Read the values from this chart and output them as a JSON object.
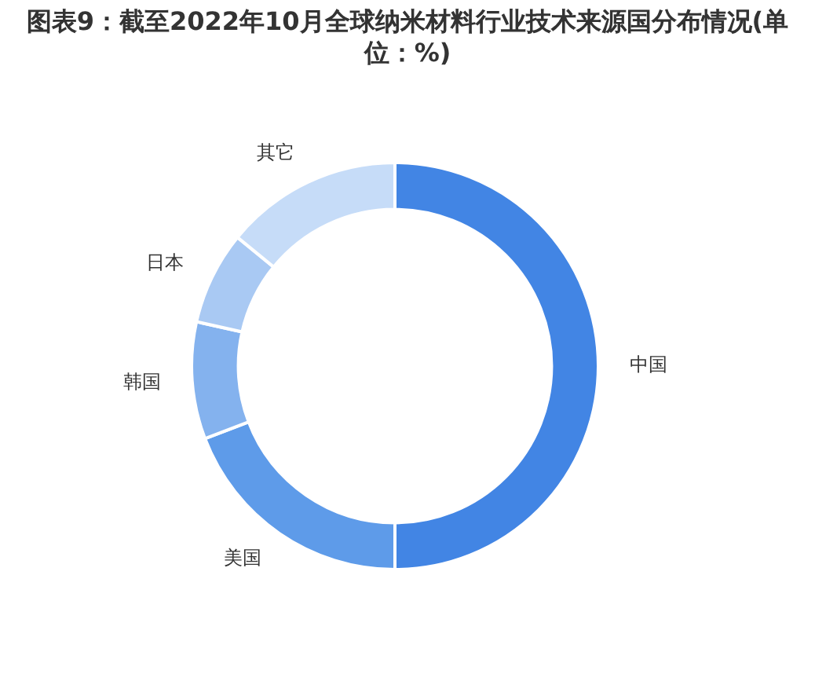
{
  "chart_data": {
    "type": "donut",
    "title": "图表9：截至2022年10月全球纳米材料行业技术来源国分布情况(单位：%)",
    "categories": [
      "中国",
      "美国",
      "韩国",
      "日本",
      "其它"
    ],
    "values": [
      50,
      19.2,
      9.3,
      7.4,
      14.1
    ],
    "colors": [
      "#4285e4",
      "#5e9be9",
      "#84b2ee",
      "#a9c9f3",
      "#c6dcf8"
    ]
  }
}
